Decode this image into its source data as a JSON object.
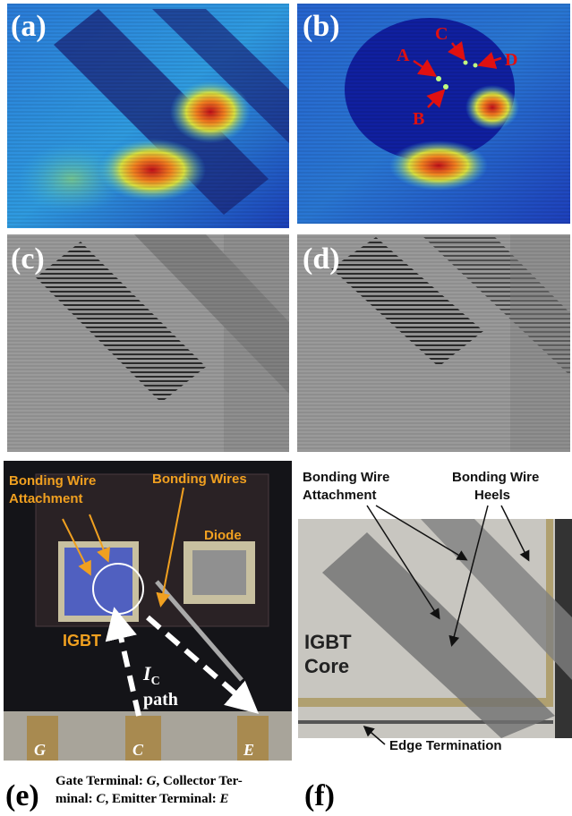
{
  "panels": {
    "a": {
      "label": "(a)"
    },
    "b": {
      "label": "(b)",
      "points": [
        "A",
        "B",
        "C",
        "D"
      ]
    },
    "c": {
      "label": "(c)"
    },
    "d": {
      "label": "(d)"
    },
    "e": {
      "label": "(e)",
      "annotations": {
        "attachment": [
          "Bonding Wire",
          "Attachment"
        ],
        "wires": "Bonding Wires",
        "diode": "Diode",
        "igbt": "IGBT"
      },
      "current": {
        "symbol": "I",
        "subscript": "C",
        "text": "path"
      },
      "terminals": [
        "G",
        "C",
        "E"
      ],
      "caption": [
        [
          "Gate Terminal:  ",
          "G",
          ", Collector Ter-"
        ],
        [
          "minal: ",
          "C",
          ", Emitter Terminal: ",
          "E"
        ]
      ]
    },
    "f": {
      "label": "(f)",
      "annotations": {
        "attachment": [
          "Bonding Wire",
          "Attachment"
        ],
        "heels": [
          "Bonding Wire",
          "Heels"
        ],
        "core": [
          "IGBT",
          "Core"
        ],
        "edge": "Edge Termination"
      }
    }
  }
}
